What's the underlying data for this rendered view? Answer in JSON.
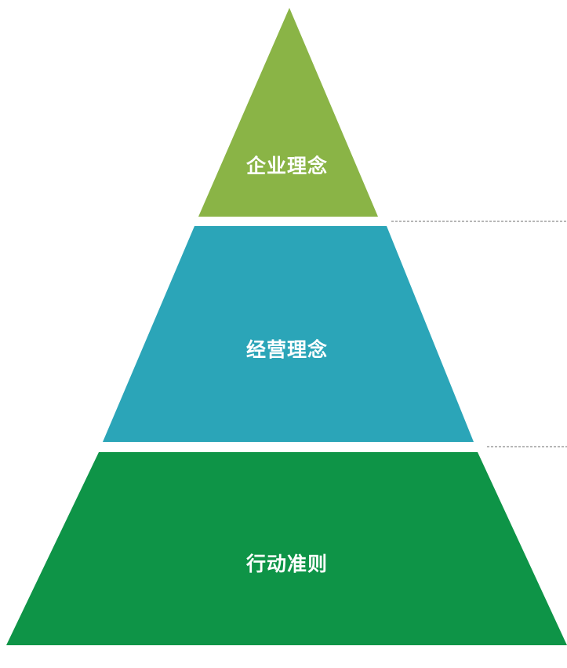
{
  "diagram": {
    "type": "pyramid",
    "levels": [
      {
        "label": "企业理念",
        "color": "#8ab446"
      },
      {
        "label": "经营理念",
        "color": "#2ba5b8"
      },
      {
        "label": "行动准则",
        "color": "#0e9447"
      }
    ],
    "connector_color": "#6f6f6f"
  }
}
